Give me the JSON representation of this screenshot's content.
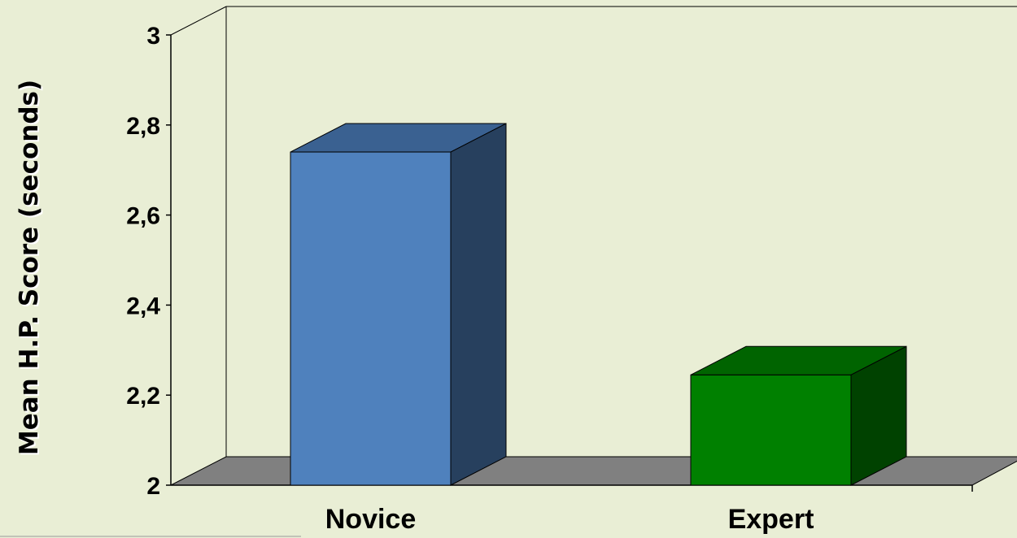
{
  "chart_data": {
    "type": "bar",
    "categories": [
      "Novice",
      "Expert"
    ],
    "values": [
      2.74,
      2.245
    ],
    "xlabel": "",
    "ylabel": "Mean H.P. Score (seconds)",
    "ylim": [
      2,
      3
    ],
    "yticks": [
      "2",
      "2,2",
      "2,4",
      "2,6",
      "2,8",
      "3"
    ],
    "grid": false,
    "legend": "none",
    "colors": {
      "background": "#e9eed5",
      "floor": "#808080",
      "bars": [
        {
          "front": "#4f81bd",
          "top": "#3a6191",
          "side": "#27405e"
        },
        {
          "front": "#008000",
          "top": "#006400",
          "side": "#004200"
        }
      ]
    }
  }
}
